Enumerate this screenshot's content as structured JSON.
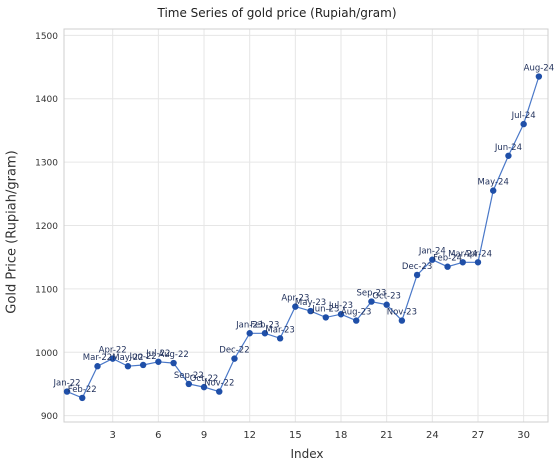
{
  "chart_data": {
    "type": "line",
    "title": "Time Series of gold price (Rupiah/gram)",
    "xlabel": "Index",
    "ylabel": "Gold Price (Rupiah/gram)",
    "xlim": [
      -0.2,
      31.6
    ],
    "ylim": [
      890,
      1510
    ],
    "x_ticks": [
      3,
      6,
      9,
      12,
      15,
      18,
      21,
      24,
      27,
      30
    ],
    "y_ticks": [
      900,
      1000,
      1100,
      1200,
      1300,
      1400,
      1500
    ],
    "grid": true,
    "line_color": "#4a78c8",
    "marker_color": "#1f4fa8",
    "series": [
      {
        "x": [
          0,
          1,
          2,
          3,
          4,
          5,
          6,
          7,
          8,
          9,
          10,
          11,
          12,
          13,
          14,
          15,
          16,
          17,
          18,
          19,
          20,
          21,
          22,
          23,
          24,
          25,
          26,
          27,
          28,
          29,
          30,
          31
        ],
        "values": [
          938,
          928,
          978,
          990,
          978,
          980,
          985,
          983,
          950,
          945,
          938,
          990,
          1030,
          1030,
          1022,
          1072,
          1065,
          1055,
          1060,
          1050,
          1080,
          1075,
          1050,
          1122,
          1146,
          1135,
          1142,
          1142,
          1255,
          1310,
          1360,
          1435
        ],
        "labels": [
          "Jan-22",
          "Feb-22",
          "Mar-22",
          "Apr-22",
          "May-22",
          "Jun-22",
          "Jul-22",
          "Aug-22",
          "Sep-22",
          "Oct-22",
          "Nov-22",
          "Dec-22",
          "Jan-23",
          "Feb-23",
          "Mar-23",
          "Apr-23",
          "May-23",
          "Jun-23",
          "Jul-23",
          "Aug-23",
          "Sep-23",
          "Oct-23",
          "Nov-23",
          "Dec-23",
          "Jan-24",
          "Feb-24",
          "Mar-24",
          "Apr-24",
          "May-24",
          "Jun-24",
          "Jul-24",
          "Aug-24"
        ]
      }
    ]
  }
}
